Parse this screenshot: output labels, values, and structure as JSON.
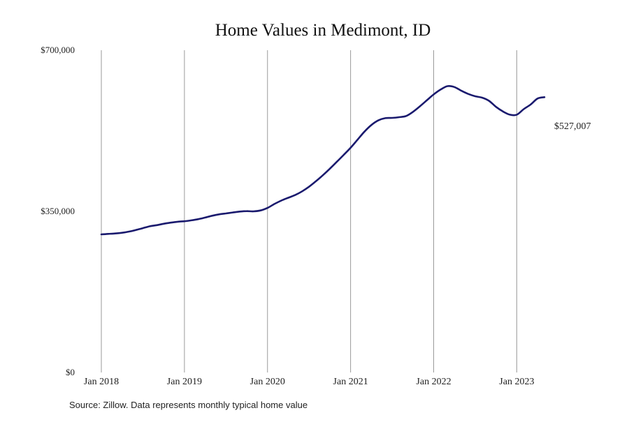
{
  "chart_data": {
    "type": "line",
    "title": "Home Values in Medimont, ID",
    "xlabel": "",
    "ylabel": "",
    "ylim": [
      0,
      700000
    ],
    "yticks": [
      "$0",
      "$350,000",
      "$700,000"
    ],
    "yticks_values": [
      0,
      350000,
      700000
    ],
    "xticks": [
      "Jan 2018",
      "Jan 2019",
      "Jan 2020",
      "Jan 2021",
      "Jan 2022",
      "Jan 2023"
    ],
    "xticks_values": [
      "2018-01",
      "2019-01",
      "2020-01",
      "2021-01",
      "2022-01",
      "2023-01"
    ],
    "x_range": [
      "2018-01",
      "2023-05"
    ],
    "grid": "vertical lines at January ticks",
    "legend": "none",
    "end_label": "$527,007",
    "source": "Source: Zillow. Data represents monthly typical home value",
    "colors": {
      "line": "#1a1a6e",
      "grid": "#9a9a9a",
      "text": "#222222"
    },
    "series": [
      {
        "x": [
          "2018-01",
          "2018-02",
          "2018-03",
          "2018-04",
          "2018-05",
          "2018-06",
          "2018-07",
          "2018-08",
          "2018-09",
          "2018-10",
          "2018-11",
          "2018-12",
          "2019-01",
          "2019-02",
          "2019-03",
          "2019-04",
          "2019-05",
          "2019-06",
          "2019-07",
          "2019-08",
          "2019-09",
          "2019-10",
          "2019-11",
          "2019-12",
          "2020-01",
          "2020-02",
          "2020-03",
          "2020-04",
          "2020-05",
          "2020-06",
          "2020-07",
          "2020-08",
          "2020-09",
          "2020-10",
          "2020-11",
          "2020-12",
          "2021-01",
          "2021-02",
          "2021-03",
          "2021-04",
          "2021-05",
          "2021-06",
          "2021-07",
          "2021-08",
          "2021-09",
          "2021-10",
          "2021-11",
          "2021-12",
          "2022-01",
          "2022-02",
          "2022-03",
          "2022-04",
          "2022-05",
          "2022-06",
          "2022-07",
          "2022-08",
          "2022-09",
          "2022-10",
          "2022-11",
          "2022-12",
          "2023-01",
          "2023-02",
          "2023-03",
          "2023-04",
          "2023-05"
        ],
        "values": [
          300000,
          301000,
          302000,
          303500,
          306000,
          309500,
          313500,
          317500,
          320000,
          323000,
          325500,
          327500,
          328500,
          330500,
          333000,
          336500,
          340500,
          343500,
          345500,
          347500,
          349500,
          350500,
          350000,
          352000,
          357500,
          366000,
          373500,
          379500,
          385500,
          393500,
          403500,
          415500,
          428500,
          442500,
          457500,
          472500,
          488000,
          505500,
          523000,
          537500,
          547500,
          552500,
          553000,
          554500,
          557000,
          566000,
          578000,
          591000,
          604000,
          614500,
          622000,
          620000,
          612000,
          605000,
          600000,
          597000,
          590000,
          577000,
          567000,
          560000,
          560000,
          572000,
          582000,
          595000,
          527007
        ],
        "note_last": 527007
      }
    ]
  }
}
